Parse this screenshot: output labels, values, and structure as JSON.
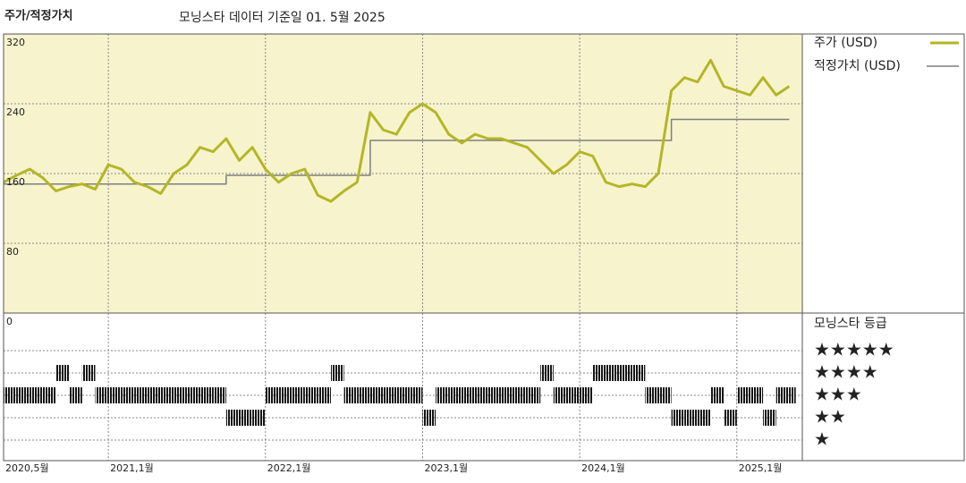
{
  "chart_data": {
    "type": "line",
    "title": "주가/적정가치",
    "subtitle": "모닝스타 데이터 기준일 01. 5월 2025",
    "x": [
      "2020-05",
      "2020-06",
      "2020-07",
      "2020-08",
      "2020-09",
      "2020-10",
      "2020-11",
      "2020-12",
      "2021-01",
      "2021-02",
      "2021-03",
      "2021-04",
      "2021-05",
      "2021-06",
      "2021-07",
      "2021-08",
      "2021-09",
      "2021-10",
      "2021-11",
      "2021-12",
      "2022-01",
      "2022-02",
      "2022-03",
      "2022-04",
      "2022-05",
      "2022-06",
      "2022-07",
      "2022-08",
      "2022-09",
      "2022-10",
      "2022-11",
      "2022-12",
      "2023-01",
      "2023-02",
      "2023-03",
      "2023-04",
      "2023-05",
      "2023-06",
      "2023-07",
      "2023-08",
      "2023-09",
      "2023-10",
      "2023-11",
      "2023-12",
      "2024-01",
      "2024-02",
      "2024-03",
      "2024-04",
      "2024-05",
      "2024-06",
      "2024-07",
      "2024-08",
      "2024-09",
      "2024-10",
      "2024-11",
      "2024-12",
      "2025-01",
      "2025-02",
      "2025-03",
      "2025-04",
      "2025-05"
    ],
    "xlim": [
      "2020-05",
      "2025-06"
    ],
    "xticks": [
      {
        "value": "2020-05",
        "label": "2020,5월"
      },
      {
        "value": "2021-01",
        "label": "2021,1월"
      },
      {
        "value": "2022-01",
        "label": "2022,1월"
      },
      {
        "value": "2023-01",
        "label": "2023,1월"
      },
      {
        "value": "2024-01",
        "label": "2024,1월"
      },
      {
        "value": "2025-01",
        "label": "2025,1월"
      }
    ],
    "ylim": [
      0,
      320
    ],
    "yticks": [
      0,
      80,
      160,
      240,
      320
    ],
    "grid": true,
    "series": [
      {
        "name": "주가 (USD)",
        "color": "#b3b626",
        "values": [
          150,
          158,
          165,
          155,
          140,
          145,
          148,
          142,
          170,
          165,
          150,
          145,
          137,
          160,
          170,
          190,
          185,
          200,
          175,
          190,
          165,
          150,
          160,
          165,
          135,
          128,
          140,
          150,
          230,
          210,
          205,
          230,
          240,
          230,
          205,
          195,
          205,
          200,
          200,
          195,
          190,
          175,
          160,
          170,
          185,
          180,
          150,
          145,
          148,
          145,
          160,
          255,
          270,
          265,
          290,
          260,
          255,
          250,
          270,
          250,
          260
        ]
      },
      {
        "name": "적정가치 (USD)",
        "color": "#7f7f7f",
        "step": true,
        "values": [
          148,
          148,
          148,
          148,
          148,
          148,
          148,
          148,
          148,
          148,
          148,
          148,
          148,
          148,
          148,
          148,
          148,
          158,
          158,
          158,
          158,
          158,
          158,
          158,
          158,
          158,
          158,
          158,
          198,
          198,
          198,
          198,
          198,
          198,
          198,
          198,
          198,
          198,
          198,
          198,
          198,
          198,
          198,
          198,
          198,
          198,
          198,
          198,
          198,
          198,
          198,
          222,
          222,
          222,
          222,
          222,
          222,
          222,
          222,
          222,
          222
        ]
      }
    ],
    "ratings": {
      "title": "모닝스타 등급",
      "levels": [
        {
          "value": 5,
          "label": "★★★★★"
        },
        {
          "value": 4,
          "label": "★★★★"
        },
        {
          "value": 3,
          "label": "★★★"
        },
        {
          "value": 2,
          "label": "★★"
        },
        {
          "value": 1,
          "label": "★"
        }
      ],
      "values": [
        3,
        3,
        3,
        3,
        4,
        3,
        4,
        3,
        3,
        3,
        3,
        3,
        3,
        3,
        3,
        3,
        3,
        2,
        2,
        2,
        3,
        3,
        3,
        3,
        3,
        4,
        3,
        3,
        3,
        3,
        3,
        3,
        2,
        3,
        3,
        3,
        3,
        3,
        3,
        3,
        3,
        4,
        3,
        3,
        3,
        4,
        4,
        4,
        4,
        3,
        3,
        2,
        2,
        2,
        3,
        2,
        3,
        3,
        2,
        3,
        3
      ]
    }
  }
}
